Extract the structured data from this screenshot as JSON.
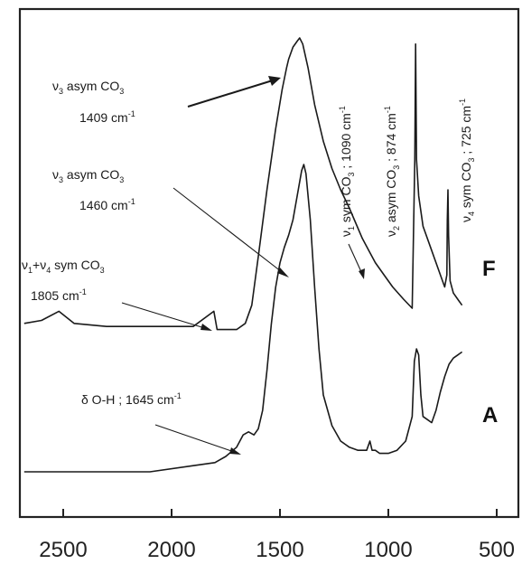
{
  "chart_data": {
    "type": "line",
    "xlim": [
      2700,
      400
    ],
    "xticks": [
      "2500",
      "2000",
      "1500",
      "1000",
      "500"
    ],
    "xtick_values": [
      2500,
      2000,
      1500,
      1000,
      500
    ],
    "series": [
      {
        "name": "F",
        "x": [
          2680,
          2600,
          2520,
          2450,
          2300,
          2100,
          1900,
          1805,
          1790,
          1700,
          1660,
          1630,
          1600,
          1560,
          1520,
          1490,
          1470,
          1460,
          1440,
          1420,
          1409,
          1395,
          1370,
          1340,
          1300,
          1260,
          1220,
          1180,
          1150,
          1120,
          1090,
          1060,
          1020,
          980,
          930,
          890,
          878,
          874,
          870,
          860,
          840,
          800,
          760,
          740,
          730,
          728,
          725,
          722,
          715,
          700,
          680,
          660
        ],
        "y": [
          0.06,
          0.07,
          0.1,
          0.06,
          0.05,
          0.05,
          0.05,
          0.1,
          0.04,
          0.04,
          0.06,
          0.12,
          0.28,
          0.5,
          0.7,
          0.83,
          0.9,
          0.93,
          0.97,
          0.99,
          1.0,
          0.98,
          0.9,
          0.78,
          0.66,
          0.57,
          0.5,
          0.44,
          0.39,
          0.34,
          0.3,
          0.26,
          0.22,
          0.18,
          0.14,
          0.11,
          0.6,
          0.98,
          0.6,
          0.48,
          0.38,
          0.3,
          0.22,
          0.18,
          0.22,
          0.4,
          0.5,
          0.35,
          0.2,
          0.16,
          0.14,
          0.12
        ]
      },
      {
        "name": "A",
        "x": [
          2680,
          2500,
          2300,
          2100,
          1900,
          1800,
          1750,
          1700,
          1670,
          1645,
          1620,
          1600,
          1580,
          1560,
          1540,
          1520,
          1500,
          1480,
          1460,
          1440,
          1420,
          1400,
          1390,
          1380,
          1360,
          1340,
          1320,
          1300,
          1260,
          1220,
          1180,
          1140,
          1100,
          1085,
          1075,
          1060,
          1040,
          1000,
          960,
          920,
          890,
          880,
          870,
          860,
          850,
          840,
          820,
          800,
          780,
          760,
          740,
          720,
          700,
          680,
          660
        ],
        "y": [
          0.0,
          0.0,
          0.0,
          0.0,
          0.02,
          0.03,
          0.05,
          0.08,
          0.12,
          0.13,
          0.12,
          0.14,
          0.2,
          0.33,
          0.48,
          0.6,
          0.68,
          0.73,
          0.77,
          0.82,
          0.9,
          0.98,
          1.0,
          0.97,
          0.82,
          0.6,
          0.4,
          0.25,
          0.15,
          0.1,
          0.08,
          0.07,
          0.07,
          0.1,
          0.07,
          0.07,
          0.06,
          0.06,
          0.07,
          0.1,
          0.18,
          0.36,
          0.4,
          0.38,
          0.25,
          0.18,
          0.17,
          0.16,
          0.2,
          0.26,
          0.31,
          0.35,
          0.37,
          0.38,
          0.39
        ]
      }
    ],
    "trace_labels": [
      "F",
      "A"
    ],
    "annotations": {
      "a1_line1": "ν",
      "a1_sub": "3",
      "a1_text": " asym CO",
      "a1_sub2": "3",
      "a1_line2": "1409 cm",
      "a1_sup": "-1",
      "a2_line1": "ν",
      "a2_sub": "3",
      "a2_text": " asym CO",
      "a2_sub2": "3",
      "a2_line2": "1460 cm",
      "a2_sup": "-1",
      "a3_line1a": "ν",
      "a3_sub1": "1",
      "a3_plus": "+ν",
      "a3_sub2": "4",
      "a3_text": " sym CO",
      "a3_sub3": "3",
      "a3_line2": "1805 cm",
      "a3_sup": "-1",
      "a4_text": "δ O-H ; 1645 cm",
      "a4_sup": "-1",
      "v1_nu": "ν",
      "v1_sub": "1",
      "v1_text": " sym CO",
      "v1_sub2": "3",
      "v1_tail": " ; 1090 cm",
      "v1_sup": "-1",
      "v2_nu": "ν",
      "v2_sub": "2",
      "v2_text": " asym CO",
      "v2_sub2": "3",
      "v2_tail": " ; 874 cm",
      "v2_sup": "-1",
      "v4_nu": "ν",
      "v4_sub": "4",
      "v4_text": " sym CO",
      "v4_sub2": "3",
      "v4_tail": " ; 725 cm",
      "v4_sup": "-1"
    }
  }
}
